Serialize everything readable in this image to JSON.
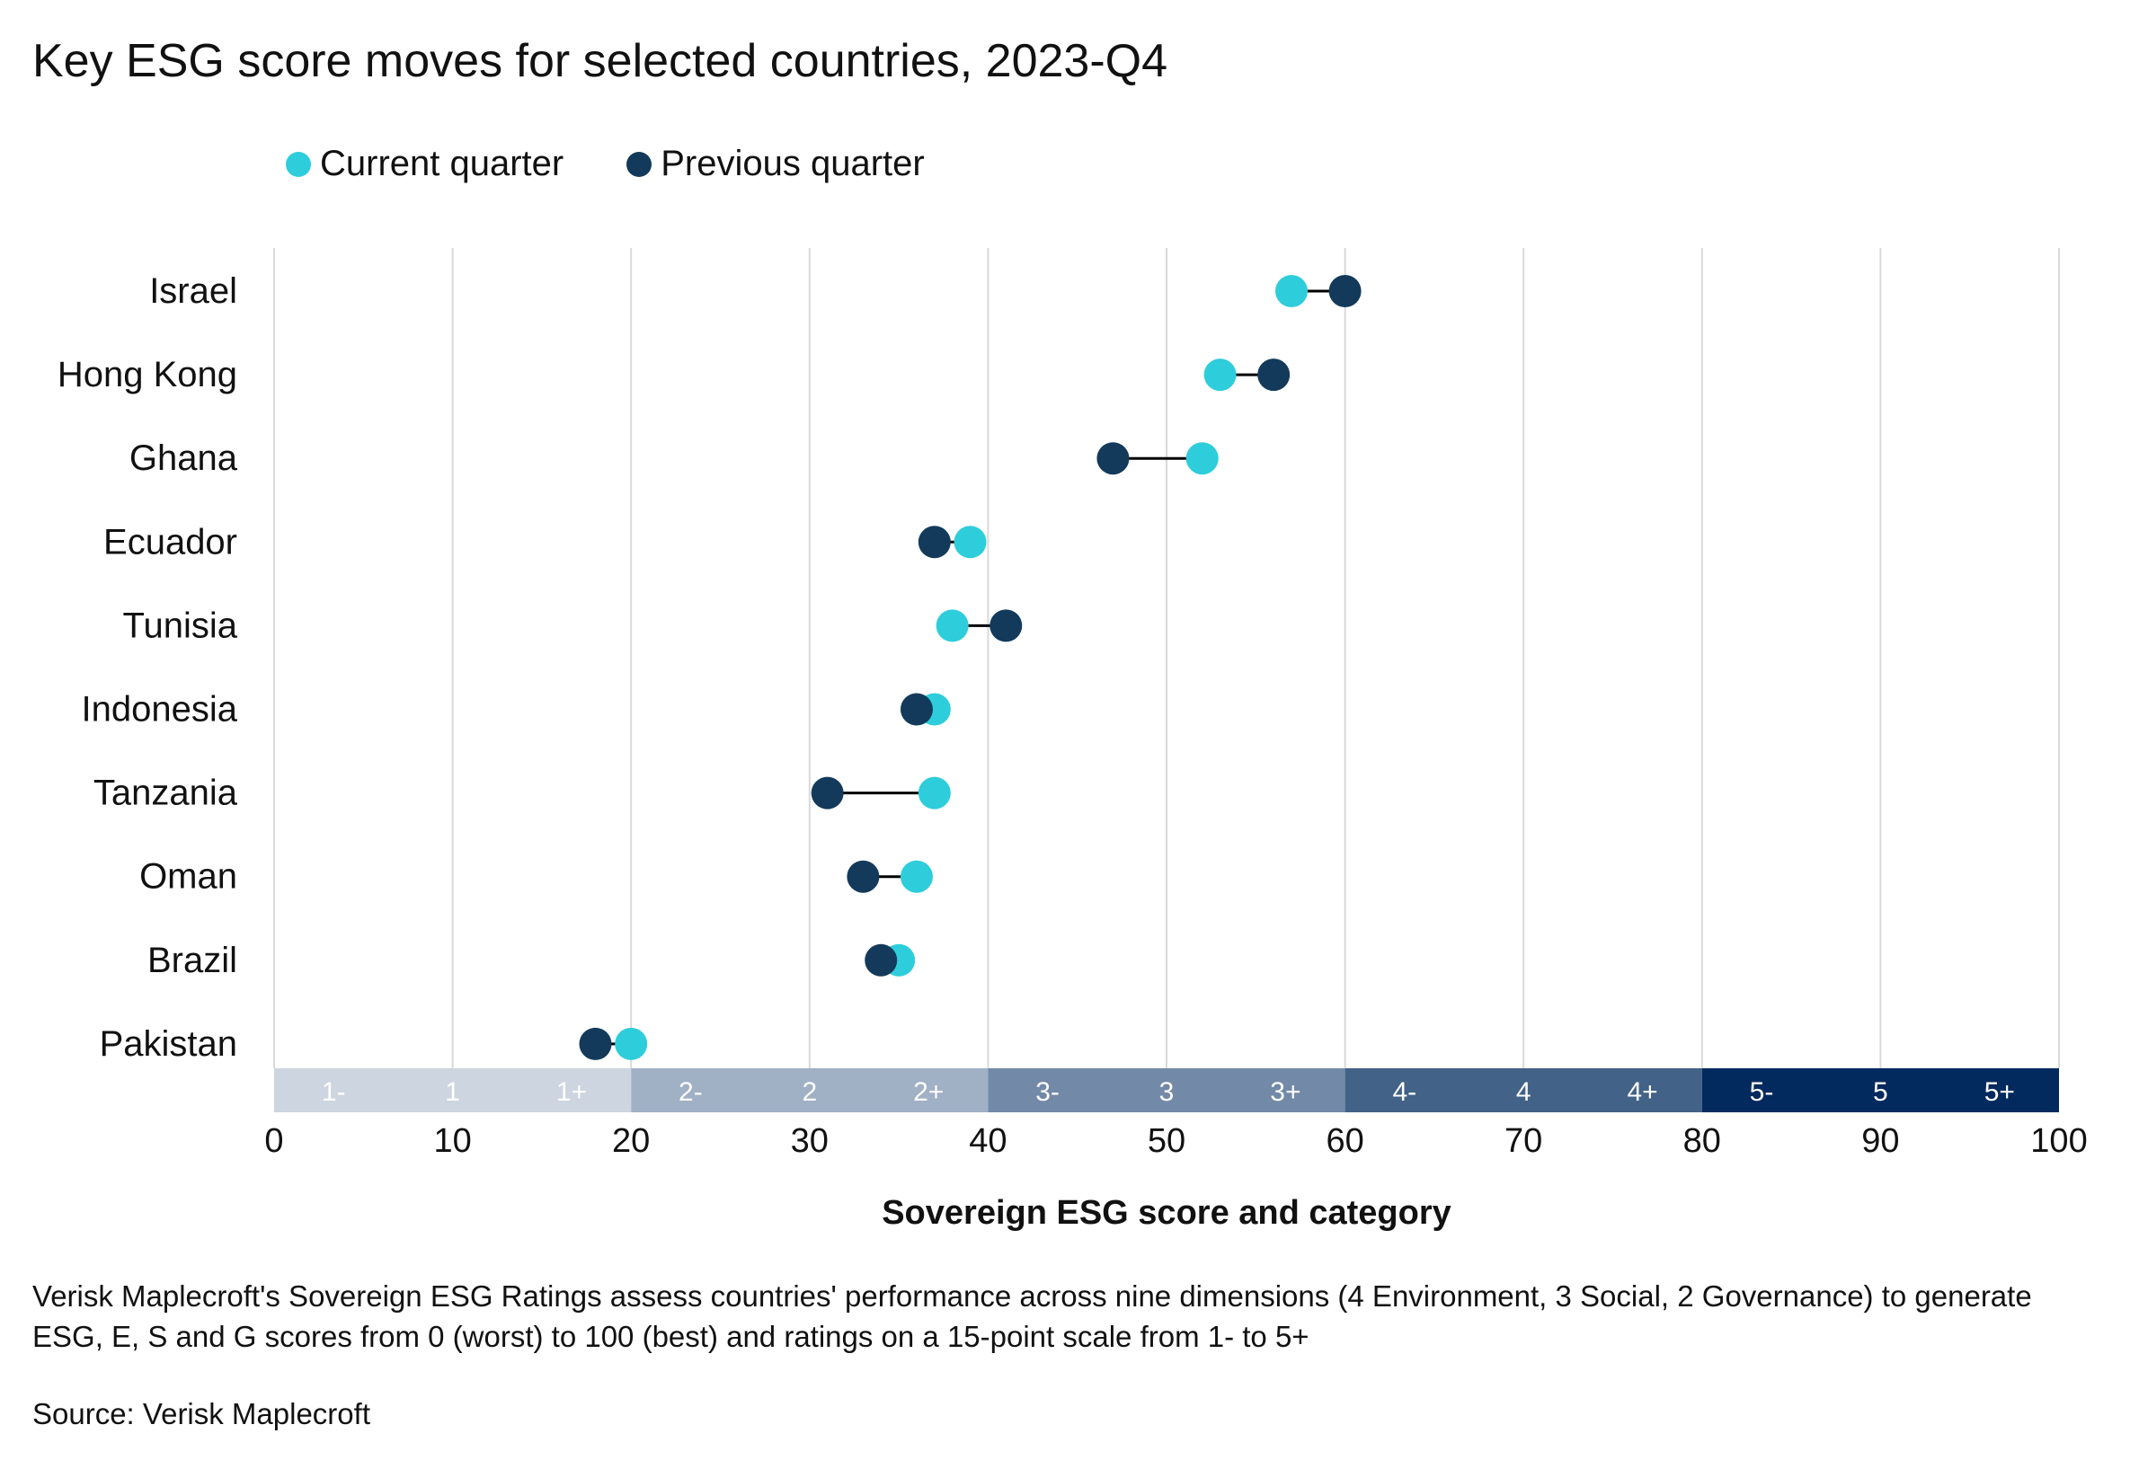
{
  "chart_data": {
    "type": "dumbbell",
    "title": "Key ESG score moves for selected countries, 2023-Q4",
    "xlabel": "Sovereign ESG score and category",
    "xlim": [
      0,
      100
    ],
    "xticks": [
      0,
      10,
      20,
      30,
      40,
      50,
      60,
      70,
      80,
      90,
      100
    ],
    "grid": true,
    "legend_position": "top-left",
    "categories": [
      "Israel",
      "Hong Kong",
      "Ghana",
      "Ecuador",
      "Tunisia",
      "Indonesia",
      "Tanzania",
      "Oman",
      "Brazil",
      "Pakistan"
    ],
    "series": [
      {
        "name": "Current quarter",
        "color": "#2ECDDB",
        "values": [
          57,
          53,
          52,
          39,
          38,
          37,
          37,
          36,
          35,
          20
        ]
      },
      {
        "name": "Previous quarter",
        "color": "#133A5A",
        "values": [
          60,
          56,
          47,
          37,
          41,
          36,
          31,
          33,
          34,
          18
        ]
      }
    ],
    "rating_bands": [
      {
        "from": 0,
        "to": 20,
        "color": "#CDD5E0",
        "labels": [
          "1-",
          "1",
          "1+"
        ]
      },
      {
        "from": 20,
        "to": 40,
        "color": "#A0B0C5",
        "labels": [
          "2-",
          "2",
          "2+"
        ]
      },
      {
        "from": 40,
        "to": 60,
        "color": "#7389A8",
        "labels": [
          "3-",
          "3",
          "3+"
        ]
      },
      {
        "from": 60,
        "to": 80,
        "color": "#426287",
        "labels": [
          "4-",
          "4",
          "4+"
        ]
      },
      {
        "from": 80,
        "to": 100,
        "color": "#032A5E",
        "labels": [
          "5-",
          "5",
          "5+"
        ]
      }
    ]
  },
  "footnote": "Verisk Maplecroft's Sovereign ESG Ratings assess countries' performance across nine dimensions (4 Environment, 3 Social, 2 Governance) to generate ESG, E, S and G scores from 0 (worst) to 100 (best) and ratings on a 15-point scale from 1- to 5+",
  "source": "Source: Verisk Maplecroft"
}
